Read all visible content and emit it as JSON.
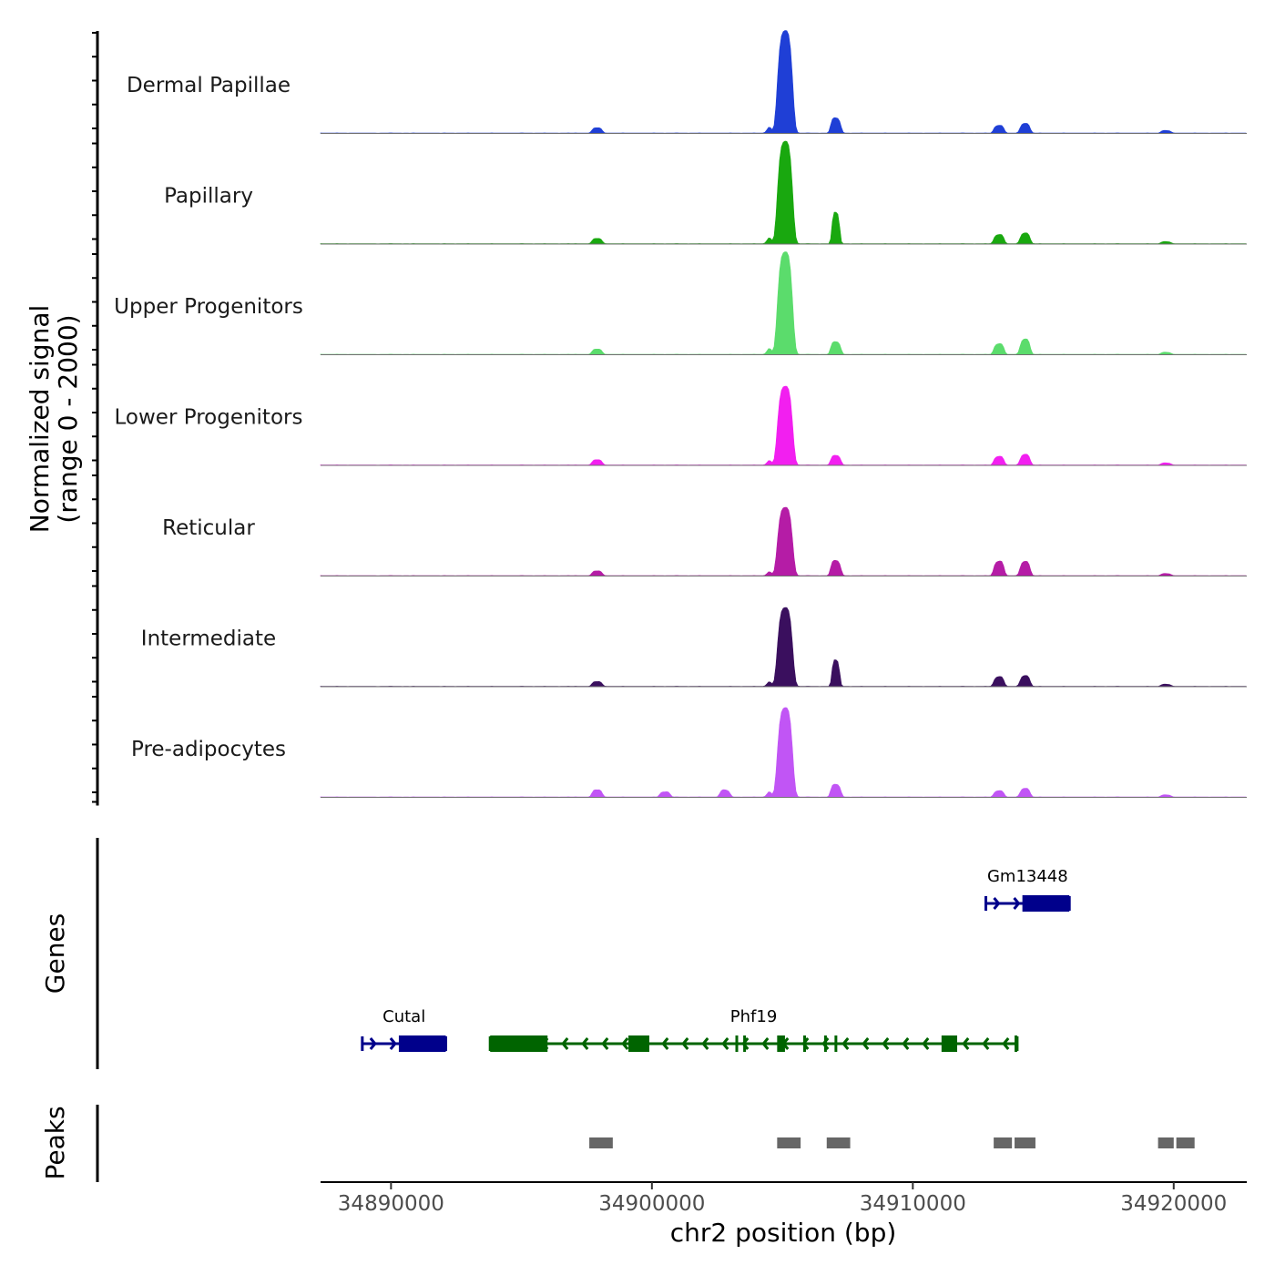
{
  "chart_data": {
    "type": "area",
    "title": "",
    "xlabel": "chr2 position (bp)",
    "ylabel": "Normalized signal\n(range 0 - 2000)",
    "ylabel_lines": [
      "Normalized signal",
      "(range 0 - 2000)"
    ],
    "xlim": [
      34887300,
      34922800
    ],
    "xticks": [
      34890000,
      34900000,
      34910000,
      34920000
    ],
    "xtick_labels": [
      "34890000",
      "34900000",
      "34910000",
      "34920000"
    ],
    "ylim": [
      0,
      2000
    ],
    "signal_peaks_x": [
      34897900,
      34905100,
      34907050,
      34913300,
      34914300,
      34919700
    ],
    "series": [
      {
        "name": "Dermal Papillae",
        "color": "#1f3fd6",
        "peaks": [
          {
            "x": 34897900,
            "value": 110
          },
          {
            "x": 34905100,
            "value": 1950
          },
          {
            "x": 34907050,
            "value": 300
          },
          {
            "x": 34913300,
            "value": 160
          },
          {
            "x": 34914300,
            "value": 190
          },
          {
            "x": 34919700,
            "value": 50
          }
        ]
      },
      {
        "name": "Papillary",
        "color": "#19a80f",
        "peaks": [
          {
            "x": 34897900,
            "value": 110
          },
          {
            "x": 34905100,
            "value": 1950
          },
          {
            "x": 34907050,
            "value": 620
          },
          {
            "x": 34913300,
            "value": 190
          },
          {
            "x": 34914300,
            "value": 210
          },
          {
            "x": 34919700,
            "value": 40
          }
        ]
      },
      {
        "name": "Upper Progenitors",
        "color": "#5bdc6c",
        "peaks": [
          {
            "x": 34897900,
            "value": 110
          },
          {
            "x": 34905100,
            "value": 1950
          },
          {
            "x": 34907050,
            "value": 250
          },
          {
            "x": 34913300,
            "value": 220
          },
          {
            "x": 34914300,
            "value": 300
          },
          {
            "x": 34919700,
            "value": 40
          }
        ]
      },
      {
        "name": "Lower Progenitors",
        "color": "#f21ff0",
        "peaks": [
          {
            "x": 34897900,
            "value": 110
          },
          {
            "x": 34905100,
            "value": 1500
          },
          {
            "x": 34907050,
            "value": 190
          },
          {
            "x": 34913300,
            "value": 180
          },
          {
            "x": 34914300,
            "value": 210
          },
          {
            "x": 34919700,
            "value": 40
          }
        ]
      },
      {
        "name": "Reticular",
        "color": "#b51ca6",
        "peaks": [
          {
            "x": 34897900,
            "value": 100
          },
          {
            "x": 34905100,
            "value": 1300
          },
          {
            "x": 34907050,
            "value": 300
          },
          {
            "x": 34913300,
            "value": 300
          },
          {
            "x": 34914300,
            "value": 280
          },
          {
            "x": 34919700,
            "value": 40
          }
        ]
      },
      {
        "name": "Intermediate",
        "color": "#3a0f5e",
        "peaks": [
          {
            "x": 34897900,
            "value": 100
          },
          {
            "x": 34905100,
            "value": 1500
          },
          {
            "x": 34907050,
            "value": 520
          },
          {
            "x": 34913300,
            "value": 200
          },
          {
            "x": 34914300,
            "value": 210
          },
          {
            "x": 34919700,
            "value": 40
          }
        ]
      },
      {
        "name": "Pre-adipocytes",
        "color": "#c155f5",
        "peaks": [
          {
            "x": 34897900,
            "value": 150
          },
          {
            "x": 34900500,
            "value": 110
          },
          {
            "x": 34902800,
            "value": 140
          },
          {
            "x": 34905100,
            "value": 1700
          },
          {
            "x": 34907050,
            "value": 250
          },
          {
            "x": 34913300,
            "value": 130
          },
          {
            "x": 34914300,
            "value": 170
          },
          {
            "x": 34919700,
            "value": 40
          }
        ]
      }
    ],
    "genes_track": {
      "title": "Genes",
      "genes": [
        {
          "name": "Gm13448",
          "strand": "+",
          "color": "#00008b",
          "start": 34912800,
          "end": 34916000,
          "row": 1,
          "exons": [
            [
              34914200,
              34916000
            ]
          ]
        },
        {
          "name": "Cutal",
          "strand": "+",
          "color": "#00008b",
          "start": 34888900,
          "end": 34892100,
          "row": 2,
          "exons": [
            [
              34890300,
              34892100
            ]
          ]
        },
        {
          "name": "Phf19",
          "strand": "-",
          "color": "#006400",
          "start": 34893800,
          "end": 34914000,
          "row": 2,
          "exons": [
            [
              34893800,
              34896000
            ],
            [
              34899100,
              34899900
            ],
            [
              34903200,
              34903300
            ],
            [
              34903500,
              34903600
            ],
            [
              34904800,
              34905100
            ],
            [
              34905800,
              34905900
            ],
            [
              34906600,
              34906700
            ],
            [
              34907000,
              34907100
            ],
            [
              34911100,
              34911700
            ],
            [
              34913900,
              34914000
            ]
          ]
        }
      ]
    },
    "peaks_track": {
      "title": "Peaks",
      "color": "#666666",
      "regions": [
        [
          34897600,
          34898500
        ],
        [
          34904800,
          34905700
        ],
        [
          34906700,
          34907600
        ],
        [
          34913100,
          34913800
        ],
        [
          34913900,
          34914700
        ],
        [
          34919400,
          34920000
        ],
        [
          34920100,
          34920800
        ]
      ]
    }
  }
}
